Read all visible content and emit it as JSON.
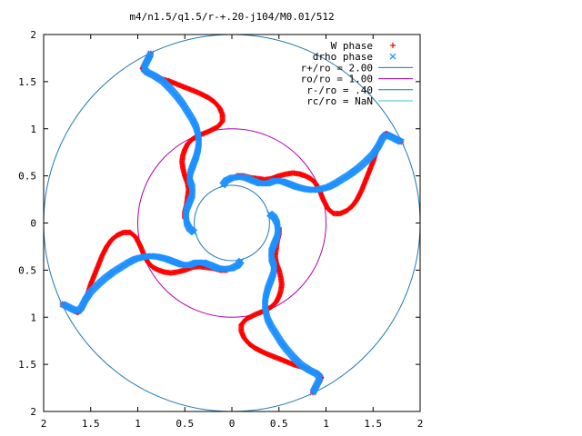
{
  "chart_data": {
    "type": "scatter",
    "title": "m4/n1.5/q1.5/r-+.20-j104/M0.01/512",
    "xlim": [
      -2,
      2
    ],
    "ylim": [
      -2,
      2
    ],
    "xticks": [
      {
        "v": -2,
        "label": "2"
      },
      {
        "v": -1.5,
        "label": "1.5"
      },
      {
        "v": -1,
        "label": "1"
      },
      {
        "v": -0.5,
        "label": "0.5"
      },
      {
        "v": 0,
        "label": "0"
      },
      {
        "v": 0.5,
        "label": "0.5"
      },
      {
        "v": 1,
        "label": "1"
      },
      {
        "v": 1.5,
        "label": "1.5"
      },
      {
        "v": 2,
        "label": "2"
      }
    ],
    "yticks": [
      {
        "v": 2,
        "label": "2"
      },
      {
        "v": 1.5,
        "label": "1.5"
      },
      {
        "v": 1,
        "label": "1"
      },
      {
        "v": 0.5,
        "label": "0.5"
      },
      {
        "v": 0,
        "label": "0"
      },
      {
        "v": -0.5,
        "label": "0.5"
      },
      {
        "v": -1,
        "label": "1"
      },
      {
        "v": -1.5,
        "label": "1.5"
      },
      {
        "v": -2,
        "label": "2"
      }
    ],
    "grid": false,
    "legend_position": "top-right",
    "series": [
      {
        "name": "W phase",
        "marker": "+",
        "color": "#ff0000",
        "arm_points": [
          [
            0.05,
            0.5
          ],
          [
            0.12,
            0.5
          ],
          [
            0.2,
            0.48
          ],
          [
            0.28,
            0.47
          ],
          [
            0.35,
            0.46
          ],
          [
            0.42,
            0.47
          ],
          [
            0.5,
            0.5
          ],
          [
            0.58,
            0.52
          ],
          [
            0.65,
            0.53
          ],
          [
            0.72,
            0.52
          ],
          [
            0.78,
            0.5
          ],
          [
            0.84,
            0.47
          ],
          [
            0.89,
            0.42
          ],
          [
            0.93,
            0.35
          ],
          [
            0.97,
            0.25
          ],
          [
            1.02,
            0.15
          ],
          [
            1.08,
            0.1
          ],
          [
            1.15,
            0.1
          ],
          [
            1.22,
            0.13
          ],
          [
            1.28,
            0.18
          ],
          [
            1.33,
            0.25
          ],
          [
            1.38,
            0.35
          ],
          [
            1.42,
            0.45
          ],
          [
            1.46,
            0.55
          ],
          [
            1.5,
            0.65
          ],
          [
            1.53,
            0.75
          ],
          [
            1.57,
            0.85
          ],
          [
            1.6,
            0.92
          ],
          [
            1.64,
            0.95
          ],
          [
            1.7,
            0.92
          ],
          [
            1.76,
            0.88
          ],
          [
            1.8,
            0.86
          ]
        ]
      },
      {
        "name": "drho phase",
        "marker": "x",
        "color": "#1e90ff",
        "arm_points": [
          [
            -0.1,
            0.4
          ],
          [
            -0.06,
            0.45
          ],
          [
            0.0,
            0.48
          ],
          [
            0.08,
            0.49
          ],
          [
            0.15,
            0.48
          ],
          [
            0.22,
            0.45
          ],
          [
            0.3,
            0.42
          ],
          [
            0.38,
            0.42
          ],
          [
            0.46,
            0.45
          ],
          [
            0.54,
            0.44
          ],
          [
            0.62,
            0.41
          ],
          [
            0.7,
            0.38
          ],
          [
            0.78,
            0.36
          ],
          [
            0.86,
            0.35
          ],
          [
            0.94,
            0.36
          ],
          [
            1.02,
            0.38
          ],
          [
            1.1,
            0.42
          ],
          [
            1.18,
            0.47
          ],
          [
            1.26,
            0.52
          ],
          [
            1.34,
            0.58
          ],
          [
            1.42,
            0.65
          ],
          [
            1.5,
            0.73
          ],
          [
            1.56,
            0.82
          ],
          [
            1.6,
            0.9
          ],
          [
            1.64,
            0.94
          ],
          [
            1.7,
            0.91
          ],
          [
            1.76,
            0.88
          ],
          [
            1.8,
            0.86
          ]
        ]
      },
      {
        "name": "r+/ro = 2.00",
        "type": "circle",
        "r": 2.0,
        "color": "#1f77b4"
      },
      {
        "name": "ro/ro = 1.00",
        "type": "circle",
        "r": 1.0,
        "color": "#b000b0"
      },
      {
        "name": "r-/ro = .40",
        "type": "circle",
        "r": 0.4,
        "color": "#1f77b4"
      },
      {
        "name": "rc/ro = NaN",
        "type": "circle",
        "r": null,
        "color": "#40c0c0"
      }
    ],
    "symmetry": {
      "arms": 4,
      "rotation_deg": 90
    }
  }
}
